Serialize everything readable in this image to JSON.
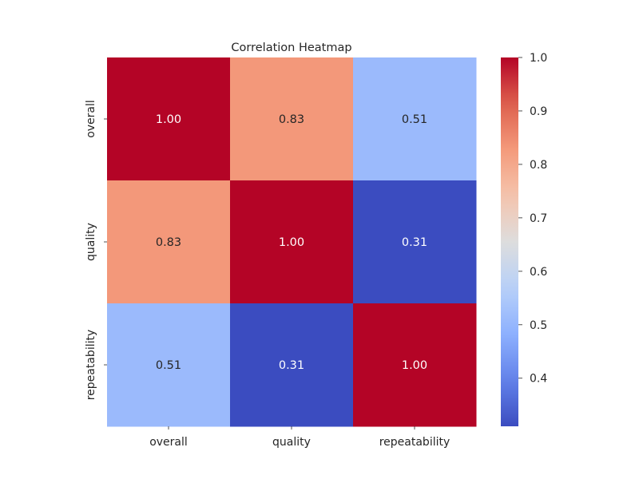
{
  "chart_data": {
    "type": "heatmap",
    "title": "Correlation Heatmap",
    "row_labels": [
      "overall",
      "quality",
      "repeatability"
    ],
    "column_labels": [
      "overall",
      "quality",
      "repeatability"
    ],
    "values": [
      [
        1.0,
        0.83,
        0.51
      ],
      [
        0.83,
        1.0,
        0.31
      ],
      [
        0.51,
        0.31,
        1.0
      ]
    ],
    "annotations": [
      [
        "1.00",
        "0.83",
        "0.51"
      ],
      [
        "0.83",
        "1.00",
        "0.31"
      ],
      [
        "0.51",
        "0.31",
        "1.00"
      ]
    ],
    "colormap": "coolwarm",
    "color_range": [
      0.31,
      1.0
    ],
    "colorbar": {
      "ticks": [
        0.4,
        0.5,
        0.6,
        0.7,
        0.8,
        0.9,
        1.0
      ],
      "tick_labels": [
        "0.4",
        "0.5",
        "0.6",
        "0.7",
        "0.8",
        "0.9",
        "1.0"
      ],
      "placement": "right"
    },
    "xlabel": "",
    "ylabel": ""
  }
}
